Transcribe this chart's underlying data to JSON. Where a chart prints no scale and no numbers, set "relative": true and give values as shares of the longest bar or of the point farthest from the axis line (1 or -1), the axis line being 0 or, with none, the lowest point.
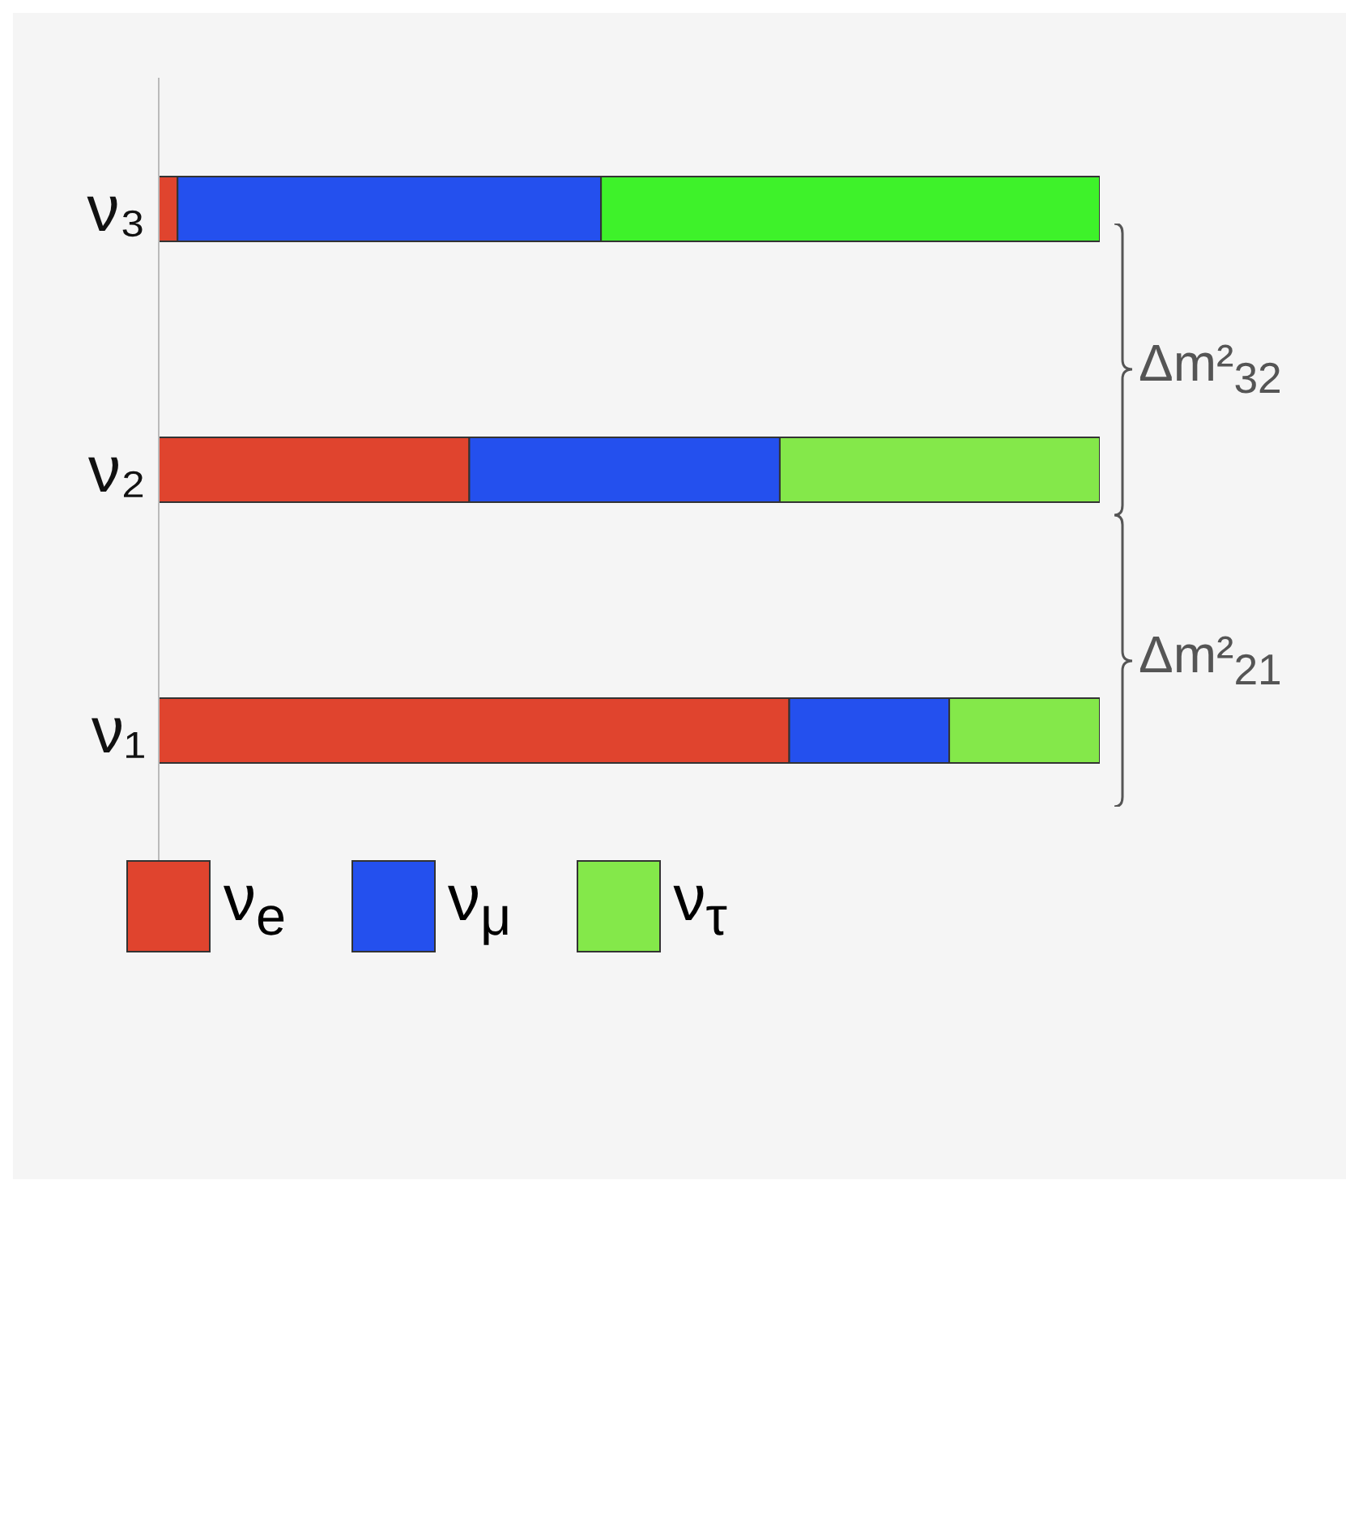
{
  "chart_data": {
    "type": "bar",
    "orientation": "horizontal",
    "stacked": true,
    "relative": true,
    "categories": [
      "ν₃",
      "ν₂",
      "ν₁"
    ],
    "series": [
      {
        "name": "ν$_{e}$",
        "colors": [
          "#e0442e",
          "#e0442e",
          "#e0442e"
        ],
        "values": [
          0.02,
          0.33,
          0.67
        ]
      },
      {
        "name": "ν$_{μ}$",
        "colors": [
          "#2450ee",
          "#2450ee",
          "#2450ee"
        ],
        "values": [
          0.45,
          0.33,
          0.17
        ]
      },
      {
        "name": "ν$_{τ}$",
        "colors": [
          "#3ef22a",
          "#84e84a",
          "#84e84a"
        ],
        "values": [
          0.53,
          0.34,
          0.16
        ]
      }
    ],
    "annotations": [
      "Δm²$_{32}$",
      "Δm²$_{21}$"
    ],
    "legend": "bottom left"
  }
}
